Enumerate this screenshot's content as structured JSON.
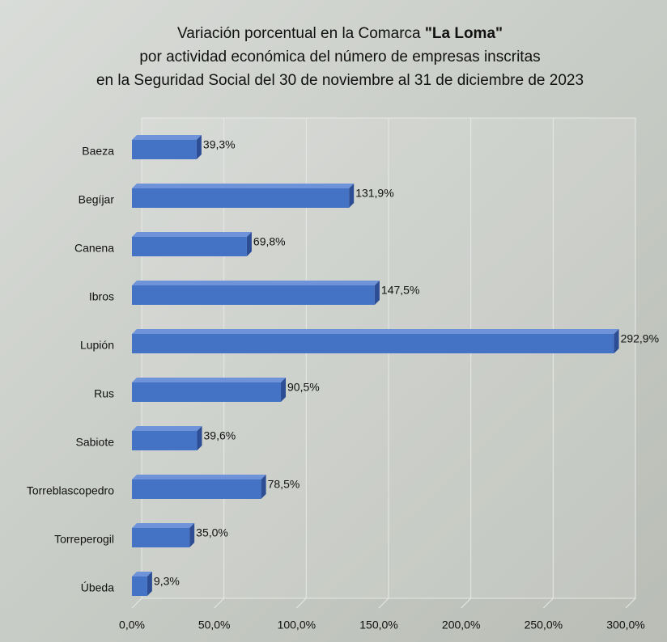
{
  "chart_data": {
    "type": "bar",
    "orientation": "horizontal",
    "title": [
      [
        "Variación porcentual en la Comarca ",
        "\"La Loma\""
      ],
      "por actividad económica del número de empresas inscritas",
      "en la Seguridad Social del 30 de noviembre al 31 de diciembre de 2023"
    ],
    "categories": [
      "Baeza",
      "Begíjar",
      "Canena",
      "Ibros",
      "Lupión",
      "Rus",
      "Sabiote",
      "Torreblascopedro",
      "Torreperogil",
      "Úbeda"
    ],
    "values": [
      39.3,
      131.9,
      69.8,
      147.5,
      292.9,
      90.5,
      39.6,
      78.5,
      35.0,
      9.3
    ],
    "value_labels": [
      "39,3%",
      "131,9%",
      "69,8%",
      "147,5%",
      "292,9%",
      "90,5%",
      "39,6%",
      "78,5%",
      "35,0%",
      "9,3%"
    ],
    "color": "#4472c4",
    "xlim": [
      0,
      300
    ],
    "xticks": [
      {
        "value": 0,
        "label": "0,0%"
      },
      {
        "value": 50,
        "label": "50,0%"
      },
      {
        "value": 100,
        "label": "100,0%"
      },
      {
        "value": 150,
        "label": "150,0%"
      },
      {
        "value": 200,
        "label": "200,0%"
      },
      {
        "value": 250,
        "label": "250,0%"
      },
      {
        "value": 300,
        "label": "300,0%"
      }
    ],
    "grid": true
  }
}
